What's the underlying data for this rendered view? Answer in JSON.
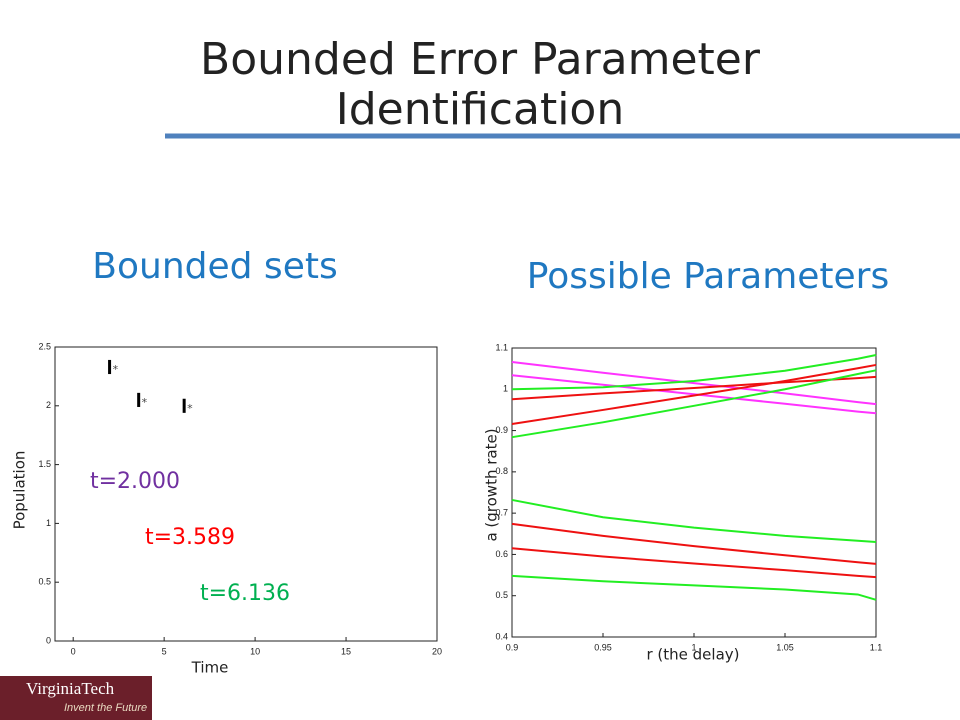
{
  "slide": {
    "title_lines": [
      "Bounded Error Parameter",
      "Identification"
    ],
    "left_heading": "Bounded sets",
    "right_heading": "Possible Parameters",
    "logo": "VirginiaTech",
    "tagline": "Invent the Future"
  },
  "chart_data": [
    {
      "type": "scatter",
      "x_label": "Time",
      "y_label": "Population",
      "x": [
        2,
        3.6,
        6.1
      ],
      "values": [
        2.33,
        2.05,
        2.0
      ],
      "errors": [
        0.06,
        0.06,
        0.06
      ],
      "color": "#000000",
      "xlim": [
        -1,
        20
      ],
      "ylim": [
        0,
        2.5
      ],
      "xticks": [
        0,
        5,
        10,
        15,
        20
      ],
      "yticks": [
        0,
        0.5,
        1,
        1.5,
        2,
        2.5
      ],
      "annotations": [
        {
          "text": "t=2.000",
          "color": "#7030a0"
        },
        {
          "text": "t=3.589",
          "color": "#ff0000"
        },
        {
          "text": "t=6.136",
          "color": "#00b050"
        }
      ]
    },
    {
      "type": "line",
      "x_label": "r (the delay)",
      "y_label": "a (growth rate)",
      "x": [
        0.9,
        0.95,
        1,
        1.05,
        1.09,
        1.1
      ],
      "series": [
        {
          "color": "#ff33ff",
          "values": [
            1.066,
            1.04,
            1.015,
            0.99,
            0.969,
            0.964
          ]
        },
        {
          "color": "#ff33ff",
          "values": [
            1.034,
            1.011,
            0.988,
            0.965,
            0.946,
            0.942
          ]
        },
        {
          "color": "#ee1111",
          "values": [
            0.976,
            0.99,
            1.003,
            1.017,
            1.027,
            1.03
          ]
        },
        {
          "color": "#ee1111",
          "values": [
            0.916,
            0.95,
            0.985,
            1.02,
            1.051,
            1.059
          ]
        },
        {
          "color": "#22ee22",
          "values": [
            1.0,
            1.005,
            1.02,
            1.045,
            1.074,
            1.083
          ]
        },
        {
          "color": "#22ee22",
          "values": [
            0.884,
            0.92,
            0.96,
            1.0,
            1.037,
            1.046
          ]
        },
        {
          "color": "#22ee22",
          "values": [
            0.732,
            0.69,
            0.665,
            0.645,
            0.633,
            0.63
          ]
        },
        {
          "color": "#ee1111",
          "values": [
            0.674,
            0.645,
            0.62,
            0.598,
            0.581,
            0.577
          ]
        },
        {
          "color": "#ee1111",
          "values": [
            0.615,
            0.595,
            0.578,
            0.562,
            0.548,
            0.545
          ]
        },
        {
          "color": "#22ee22",
          "values": [
            0.548,
            0.535,
            0.525,
            0.515,
            0.503,
            0.49
          ]
        }
      ],
      "xlim": [
        0.9,
        1.1
      ],
      "ylim": [
        0.4,
        1.1
      ],
      "xticks": [
        0.9,
        0.95,
        1,
        1.05,
        1.1
      ],
      "yticks": [
        0.4,
        0.5,
        0.6,
        0.7,
        0.8,
        0.9,
        1,
        1.1
      ]
    }
  ]
}
